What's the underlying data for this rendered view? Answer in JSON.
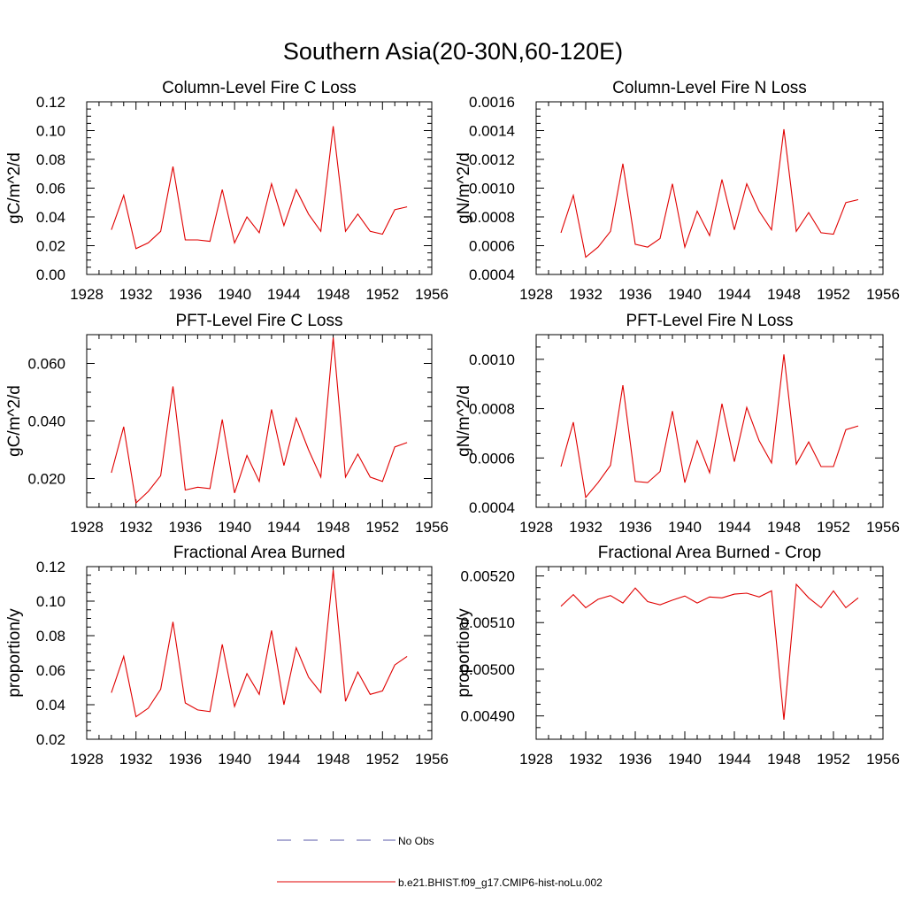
{
  "figure_title": "Southern Asia(20-30N,60-120E)",
  "legend": [
    {
      "label": "No Obs",
      "color": "#5a5aa8",
      "style": "dashed"
    },
    {
      "label": "b.e21.BHIST.f09_g17.CMIP6-hist-noLu.002",
      "color": "#e00000",
      "style": "solid"
    }
  ],
  "chart_data": [
    {
      "type": "line",
      "title": "Column-Level Fire C Loss",
      "ylabel": "gC/m^2/d",
      "xlabel": "",
      "xlim": [
        1928,
        1956
      ],
      "ylim": [
        0,
        0.12
      ],
      "xticks": [
        1928,
        1932,
        1936,
        1940,
        1944,
        1948,
        1952,
        1956
      ],
      "yticks": [
        0,
        0.02,
        0.04,
        0.06,
        0.08,
        0.1,
        0.12
      ],
      "ytick_labels": [
        "0.00",
        "0.02",
        "0.04",
        "0.06",
        "0.08",
        "0.10",
        "0.12"
      ],
      "x": [
        1930,
        1931,
        1932,
        1933,
        1934,
        1935,
        1936,
        1937,
        1938,
        1939,
        1940,
        1941,
        1942,
        1943,
        1944,
        1945,
        1946,
        1947,
        1948,
        1949,
        1950,
        1951,
        1952,
        1953,
        1954
      ],
      "series": [
        {
          "color": "#e00000",
          "values": [
            0.031,
            0.055,
            0.018,
            0.022,
            0.03,
            0.075,
            0.024,
            0.024,
            0.023,
            0.059,
            0.022,
            0.04,
            0.029,
            0.063,
            0.034,
            0.059,
            0.042,
            0.03,
            0.103,
            0.03,
            0.042,
            0.03,
            0.028,
            0.045,
            0.047
          ]
        }
      ]
    },
    {
      "type": "line",
      "title": "Column-Level Fire N Loss",
      "ylabel": "gN/m^2/d",
      "xlabel": "",
      "xlim": [
        1928,
        1956
      ],
      "ylim": [
        0.0004,
        0.0016
      ],
      "xticks": [
        1928,
        1932,
        1936,
        1940,
        1944,
        1948,
        1952,
        1956
      ],
      "yticks": [
        0.0004,
        0.0006,
        0.0008,
        0.001,
        0.0012,
        0.0014,
        0.0016
      ],
      "ytick_labels": [
        "0.0004",
        "0.0006",
        "0.0008",
        "0.0010",
        "0.0012",
        "0.0014",
        "0.0016"
      ],
      "x": [
        1930,
        1931,
        1932,
        1933,
        1934,
        1935,
        1936,
        1937,
        1938,
        1939,
        1940,
        1941,
        1942,
        1943,
        1944,
        1945,
        1946,
        1947,
        1948,
        1949,
        1950,
        1951,
        1952,
        1953,
        1954
      ],
      "series": [
        {
          "color": "#e00000",
          "values": [
            0.00069,
            0.00095,
            0.00052,
            0.00059,
            0.0007,
            0.00117,
            0.00061,
            0.00059,
            0.00065,
            0.00103,
            0.00059,
            0.00084,
            0.00067,
            0.00106,
            0.00071,
            0.00103,
            0.00084,
            0.00071,
            0.00141,
            0.0007,
            0.00083,
            0.00069,
            0.00068,
            0.0009,
            0.00092
          ]
        }
      ]
    },
    {
      "type": "line",
      "title": "PFT-Level Fire C Loss",
      "ylabel": "gC/m^2/d",
      "xlabel": "",
      "xlim": [
        1928,
        1956
      ],
      "ylim": [
        0.01,
        0.07
      ],
      "xticks": [
        1928,
        1932,
        1936,
        1940,
        1944,
        1948,
        1952,
        1956
      ],
      "yticks": [
        0.02,
        0.04,
        0.06
      ],
      "ytick_labels": [
        "0.020",
        "0.040",
        "0.060"
      ],
      "x": [
        1930,
        1931,
        1932,
        1933,
        1934,
        1935,
        1936,
        1937,
        1938,
        1939,
        1940,
        1941,
        1942,
        1943,
        1944,
        1945,
        1946,
        1947,
        1948,
        1949,
        1950,
        1951,
        1952,
        1953,
        1954
      ],
      "series": [
        {
          "color": "#e00000",
          "values": [
            0.022,
            0.038,
            0.0115,
            0.0155,
            0.021,
            0.052,
            0.016,
            0.017,
            0.0165,
            0.0405,
            0.015,
            0.028,
            0.019,
            0.044,
            0.0245,
            0.041,
            0.03,
            0.0205,
            0.069,
            0.0205,
            0.0285,
            0.0205,
            0.019,
            0.031,
            0.0325
          ]
        }
      ]
    },
    {
      "type": "line",
      "title": "PFT-Level Fire N Loss",
      "ylabel": "gN/m^2/d",
      "xlabel": "",
      "xlim": [
        1928,
        1956
      ],
      "ylim": [
        0.0004,
        0.0011
      ],
      "xticks": [
        1928,
        1932,
        1936,
        1940,
        1944,
        1948,
        1952,
        1956
      ],
      "yticks": [
        0.0004,
        0.0006,
        0.0008,
        0.001
      ],
      "ytick_labels": [
        "0.0004",
        "0.0006",
        "0.0008",
        "0.0010"
      ],
      "x": [
        1930,
        1931,
        1932,
        1933,
        1934,
        1935,
        1936,
        1937,
        1938,
        1939,
        1940,
        1941,
        1942,
        1943,
        1944,
        1945,
        1946,
        1947,
        1948,
        1949,
        1950,
        1951,
        1952,
        1953,
        1954
      ],
      "series": [
        {
          "color": "#e00000",
          "values": [
            0.000565,
            0.000745,
            0.00044,
            0.0005,
            0.00057,
            0.000895,
            0.000505,
            0.0005,
            0.000545,
            0.00079,
            0.0005,
            0.00067,
            0.00054,
            0.00082,
            0.000585,
            0.000805,
            0.00067,
            0.00058,
            0.00102,
            0.000575,
            0.000665,
            0.000565,
            0.000565,
            0.000715,
            0.00073
          ]
        }
      ]
    },
    {
      "type": "line",
      "title": "Fractional Area Burned",
      "ylabel": "proportion/y",
      "xlabel": "",
      "xlim": [
        1928,
        1956
      ],
      "ylim": [
        0.02,
        0.12
      ],
      "xticks": [
        1928,
        1932,
        1936,
        1940,
        1944,
        1948,
        1952,
        1956
      ],
      "yticks": [
        0.02,
        0.04,
        0.06,
        0.08,
        0.1,
        0.12
      ],
      "ytick_labels": [
        "0.02",
        "0.04",
        "0.06",
        "0.08",
        "0.10",
        "0.12"
      ],
      "x": [
        1930,
        1931,
        1932,
        1933,
        1934,
        1935,
        1936,
        1937,
        1938,
        1939,
        1940,
        1941,
        1942,
        1943,
        1944,
        1945,
        1946,
        1947,
        1948,
        1949,
        1950,
        1951,
        1952,
        1953,
        1954
      ],
      "series": [
        {
          "color": "#e00000",
          "values": [
            0.047,
            0.068,
            0.033,
            0.038,
            0.049,
            0.088,
            0.041,
            0.037,
            0.036,
            0.075,
            0.039,
            0.058,
            0.046,
            0.083,
            0.04,
            0.073,
            0.056,
            0.047,
            0.118,
            0.042,
            0.059,
            0.046,
            0.048,
            0.063,
            0.068
          ]
        }
      ]
    },
    {
      "type": "line",
      "title": "Fractional Area Burned - Crop",
      "ylabel": "proportion/y",
      "xlabel": "",
      "xlim": [
        1928,
        1956
      ],
      "ylim": [
        0.00485,
        0.00522
      ],
      "xticks": [
        1928,
        1932,
        1936,
        1940,
        1944,
        1948,
        1952,
        1956
      ],
      "yticks": [
        0.0049,
        0.005,
        0.0051,
        0.0052
      ],
      "ytick_labels": [
        "0.00490",
        "0.00500",
        "0.00510",
        "0.00520"
      ],
      "x": [
        1930,
        1931,
        1932,
        1933,
        1934,
        1935,
        1936,
        1937,
        1938,
        1939,
        1940,
        1941,
        1942,
        1943,
        1944,
        1945,
        1946,
        1947,
        1948,
        1949,
        1950,
        1951,
        1952,
        1953,
        1954
      ],
      "series": [
        {
          "color": "#e00000",
          "values": [
            0.005135,
            0.00516,
            0.005132,
            0.00515,
            0.005158,
            0.005142,
            0.005174,
            0.005145,
            0.005138,
            0.005148,
            0.005157,
            0.005142,
            0.005155,
            0.005153,
            0.005161,
            0.005163,
            0.005155,
            0.005168,
            0.004892,
            0.005182,
            0.005153,
            0.005132,
            0.005168,
            0.005132,
            0.005153
          ]
        }
      ]
    }
  ]
}
